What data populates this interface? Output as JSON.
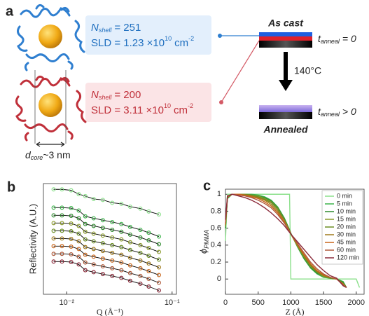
{
  "panel_labels": [
    "a",
    "b",
    "c"
  ],
  "schematic": {
    "shell_1": {
      "symbol": "N",
      "subscript": "shell",
      "value": "= 251",
      "sld": "SLD = 1.23 ×10",
      "sld_exponent": "10",
      "unit": "cm",
      "unit_exponent": "-2"
    },
    "shell_2": {
      "symbol": "N",
      "subscript": "shell",
      "value": "= 200",
      "sld": "SLD = 3.11 ×10",
      "sld_exponent": "10",
      "unit": "cm",
      "unit_exponent": "-2"
    },
    "core": {
      "symbol": "d",
      "subscript": "core",
      "value": "~3 nm"
    },
    "as_cast": "As cast",
    "t_before": {
      "symbol": "t",
      "subscript": "anneal",
      "value": "= 0"
    },
    "temperature": "140°C",
    "annealed": "Annealed",
    "t_after": {
      "symbol": "t",
      "subscript": "anneal",
      "value": "> 0"
    }
  },
  "chart_data": [
    {
      "type": "line",
      "markers": true,
      "line_color": "#000000",
      "xscale": "log",
      "xlabel": "Q (Å⁻¹)",
      "ylabel": "Reflectivity (A.U.)",
      "xlim": [
        0.006,
        0.11
      ],
      "ylim": [
        -1.5,
        10
      ],
      "xticks": [
        {
          "value": 0.01,
          "label": "10⁻²"
        },
        {
          "value": 0.1,
          "label": "10⁻¹"
        }
      ],
      "x": [
        0.0075,
        0.009,
        0.011,
        0.013,
        0.015,
        0.018,
        0.022,
        0.027,
        0.033,
        0.04,
        0.05,
        0.06,
        0.075
      ],
      "series": [
        {
          "color": "#8be08b",
          "values": [
            9.4,
            9.4,
            9.3,
            8.9,
            8.7,
            8.4,
            8.3,
            8.0,
            7.9,
            7.6,
            7.4,
            7.1,
            6.8
          ]
        },
        {
          "color": "#3cb44b",
          "values": [
            7.5,
            7.5,
            7.45,
            7.2,
            6.6,
            6.4,
            6.2,
            6.0,
            5.8,
            5.5,
            5.2,
            4.9,
            4.5
          ]
        },
        {
          "color": "#2e8b2e",
          "values": [
            6.7,
            6.7,
            6.65,
            6.4,
            5.8,
            5.6,
            5.4,
            5.2,
            5.0,
            4.7,
            4.4,
            4.1,
            3.7
          ]
        },
        {
          "color": "#8a9a2a",
          "values": [
            5.9,
            5.9,
            5.85,
            5.6,
            5.0,
            4.8,
            4.6,
            4.4,
            4.2,
            3.9,
            3.6,
            3.3,
            2.9
          ]
        },
        {
          "color": "#6b8e23",
          "values": [
            5.1,
            5.1,
            5.05,
            4.8,
            4.2,
            4.0,
            3.8,
            3.6,
            3.4,
            3.1,
            2.8,
            2.5,
            2.1
          ]
        },
        {
          "color": "#a07a1c",
          "values": [
            4.3,
            4.3,
            4.25,
            4.0,
            3.4,
            3.2,
            3.0,
            2.8,
            2.6,
            2.3,
            2.0,
            1.7,
            1.3
          ]
        },
        {
          "color": "#c8651b",
          "values": [
            3.5,
            3.5,
            3.45,
            3.2,
            2.6,
            2.4,
            2.2,
            2.0,
            1.8,
            1.5,
            1.2,
            0.9,
            0.5
          ]
        },
        {
          "color": "#b05a3a",
          "values": [
            2.7,
            2.7,
            2.65,
            2.4,
            1.8,
            1.6,
            1.4,
            1.2,
            1.0,
            0.7,
            0.4,
            0.1,
            -0.3
          ]
        },
        {
          "color": "#8b2a3a",
          "values": [
            1.9,
            1.9,
            1.85,
            1.6,
            1.0,
            0.8,
            0.6,
            0.4,
            0.2,
            -0.1,
            -0.4,
            -0.7,
            -1.1
          ]
        }
      ]
    },
    {
      "type": "line",
      "legend": "upper right",
      "xlabel": "Z (Å)",
      "ylabel": {
        "symbol": "ϕ",
        "subscript": "PMMA"
      },
      "xlim": [
        0,
        2120
      ],
      "ylim": [
        -0.18,
        1.06
      ],
      "xticks": [
        0,
        500,
        1000,
        1500,
        2000
      ],
      "yticks": [
        0,
        0.2,
        0.4,
        0.6,
        0.8,
        1
      ],
      "x": [
        0,
        30,
        100,
        200,
        300,
        400,
        500,
        600,
        700,
        800,
        900,
        980,
        1000,
        1100,
        1200,
        1300,
        1400,
        1500,
        1600,
        1700,
        1800,
        1850,
        1900,
        2000,
        2050
      ],
      "series": [
        {
          "name": "0 min",
          "color": "#8be08b",
          "values": [
            0.45,
            1,
            1,
            1,
            1,
            1,
            1,
            1,
            1,
            1,
            1,
            1,
            0,
            0,
            0,
            0,
            0,
            0,
            0,
            0,
            0,
            0,
            0,
            0,
            -0.1
          ]
        },
        {
          "name": "5 min",
          "color": "#3cb44b",
          "values": [
            0.6,
            0.95,
            1,
            1,
            1,
            1,
            0.99,
            0.97,
            0.93,
            0.85,
            0.72,
            0.58,
            0.54,
            0.38,
            0.24,
            0.13,
            0.06,
            0.02,
            0.01,
            0,
            -0.03,
            -0.1,
            null,
            null,
            null
          ]
        },
        {
          "name": "10 min",
          "color": "#2e8b2e",
          "values": [
            0.6,
            0.95,
            1,
            1,
            1,
            0.99,
            0.98,
            0.96,
            0.92,
            0.84,
            0.71,
            0.58,
            0.54,
            0.39,
            0.25,
            0.14,
            0.07,
            0.03,
            0.01,
            0,
            -0.04,
            -0.1,
            null,
            null,
            null
          ]
        },
        {
          "name": "15 min",
          "color": "#8a9a2a",
          "values": [
            0.62,
            0.96,
            1,
            1,
            1,
            0.99,
            0.98,
            0.95,
            0.91,
            0.83,
            0.7,
            0.57,
            0.53,
            0.39,
            0.26,
            0.15,
            0.08,
            0.03,
            0.01,
            0,
            -0.05,
            -0.1,
            null,
            null,
            null
          ]
        },
        {
          "name": "20 min",
          "color": "#6b8e23",
          "values": [
            0.63,
            0.96,
            1,
            1,
            1,
            0.99,
            0.97,
            0.94,
            0.9,
            0.82,
            0.7,
            0.57,
            0.53,
            0.4,
            0.27,
            0.16,
            0.08,
            0.04,
            0.01,
            0,
            -0.05,
            -0.1,
            null,
            null,
            null
          ]
        },
        {
          "name": "30 min",
          "color": "#a07a1c",
          "values": [
            0.64,
            0.97,
            1,
            1,
            0.99,
            0.98,
            0.96,
            0.93,
            0.88,
            0.8,
            0.69,
            0.57,
            0.53,
            0.4,
            0.28,
            0.17,
            0.09,
            0.04,
            0.02,
            0,
            -0.06,
            -0.1,
            null,
            null,
            null
          ]
        },
        {
          "name": "45 min",
          "color": "#c8651b",
          "values": [
            0.65,
            0.97,
            1,
            1,
            0.99,
            0.97,
            0.95,
            0.91,
            0.86,
            0.78,
            0.67,
            0.56,
            0.53,
            0.41,
            0.29,
            0.18,
            0.1,
            0.05,
            0.02,
            0,
            -0.06,
            -0.1,
            null,
            null,
            null
          ]
        },
        {
          "name": "60 min",
          "color": "#b05a3a",
          "values": [
            0.66,
            0.97,
            1,
            0.99,
            0.98,
            0.96,
            0.93,
            0.89,
            0.84,
            0.76,
            0.66,
            0.56,
            0.53,
            0.42,
            0.31,
            0.2,
            0.12,
            0.06,
            0.02,
            0,
            -0.07,
            -0.1,
            null,
            null,
            null
          ]
        },
        {
          "name": "120 min",
          "color": "#8b2a3a",
          "values": [
            0.7,
            0.98,
            1,
            0.98,
            0.96,
            0.93,
            0.89,
            0.84,
            0.78,
            0.71,
            0.63,
            0.55,
            0.53,
            0.44,
            0.35,
            0.26,
            0.17,
            0.1,
            0.04,
            0.01,
            -0.08,
            -0.1,
            null,
            null,
            null
          ]
        }
      ]
    }
  ]
}
